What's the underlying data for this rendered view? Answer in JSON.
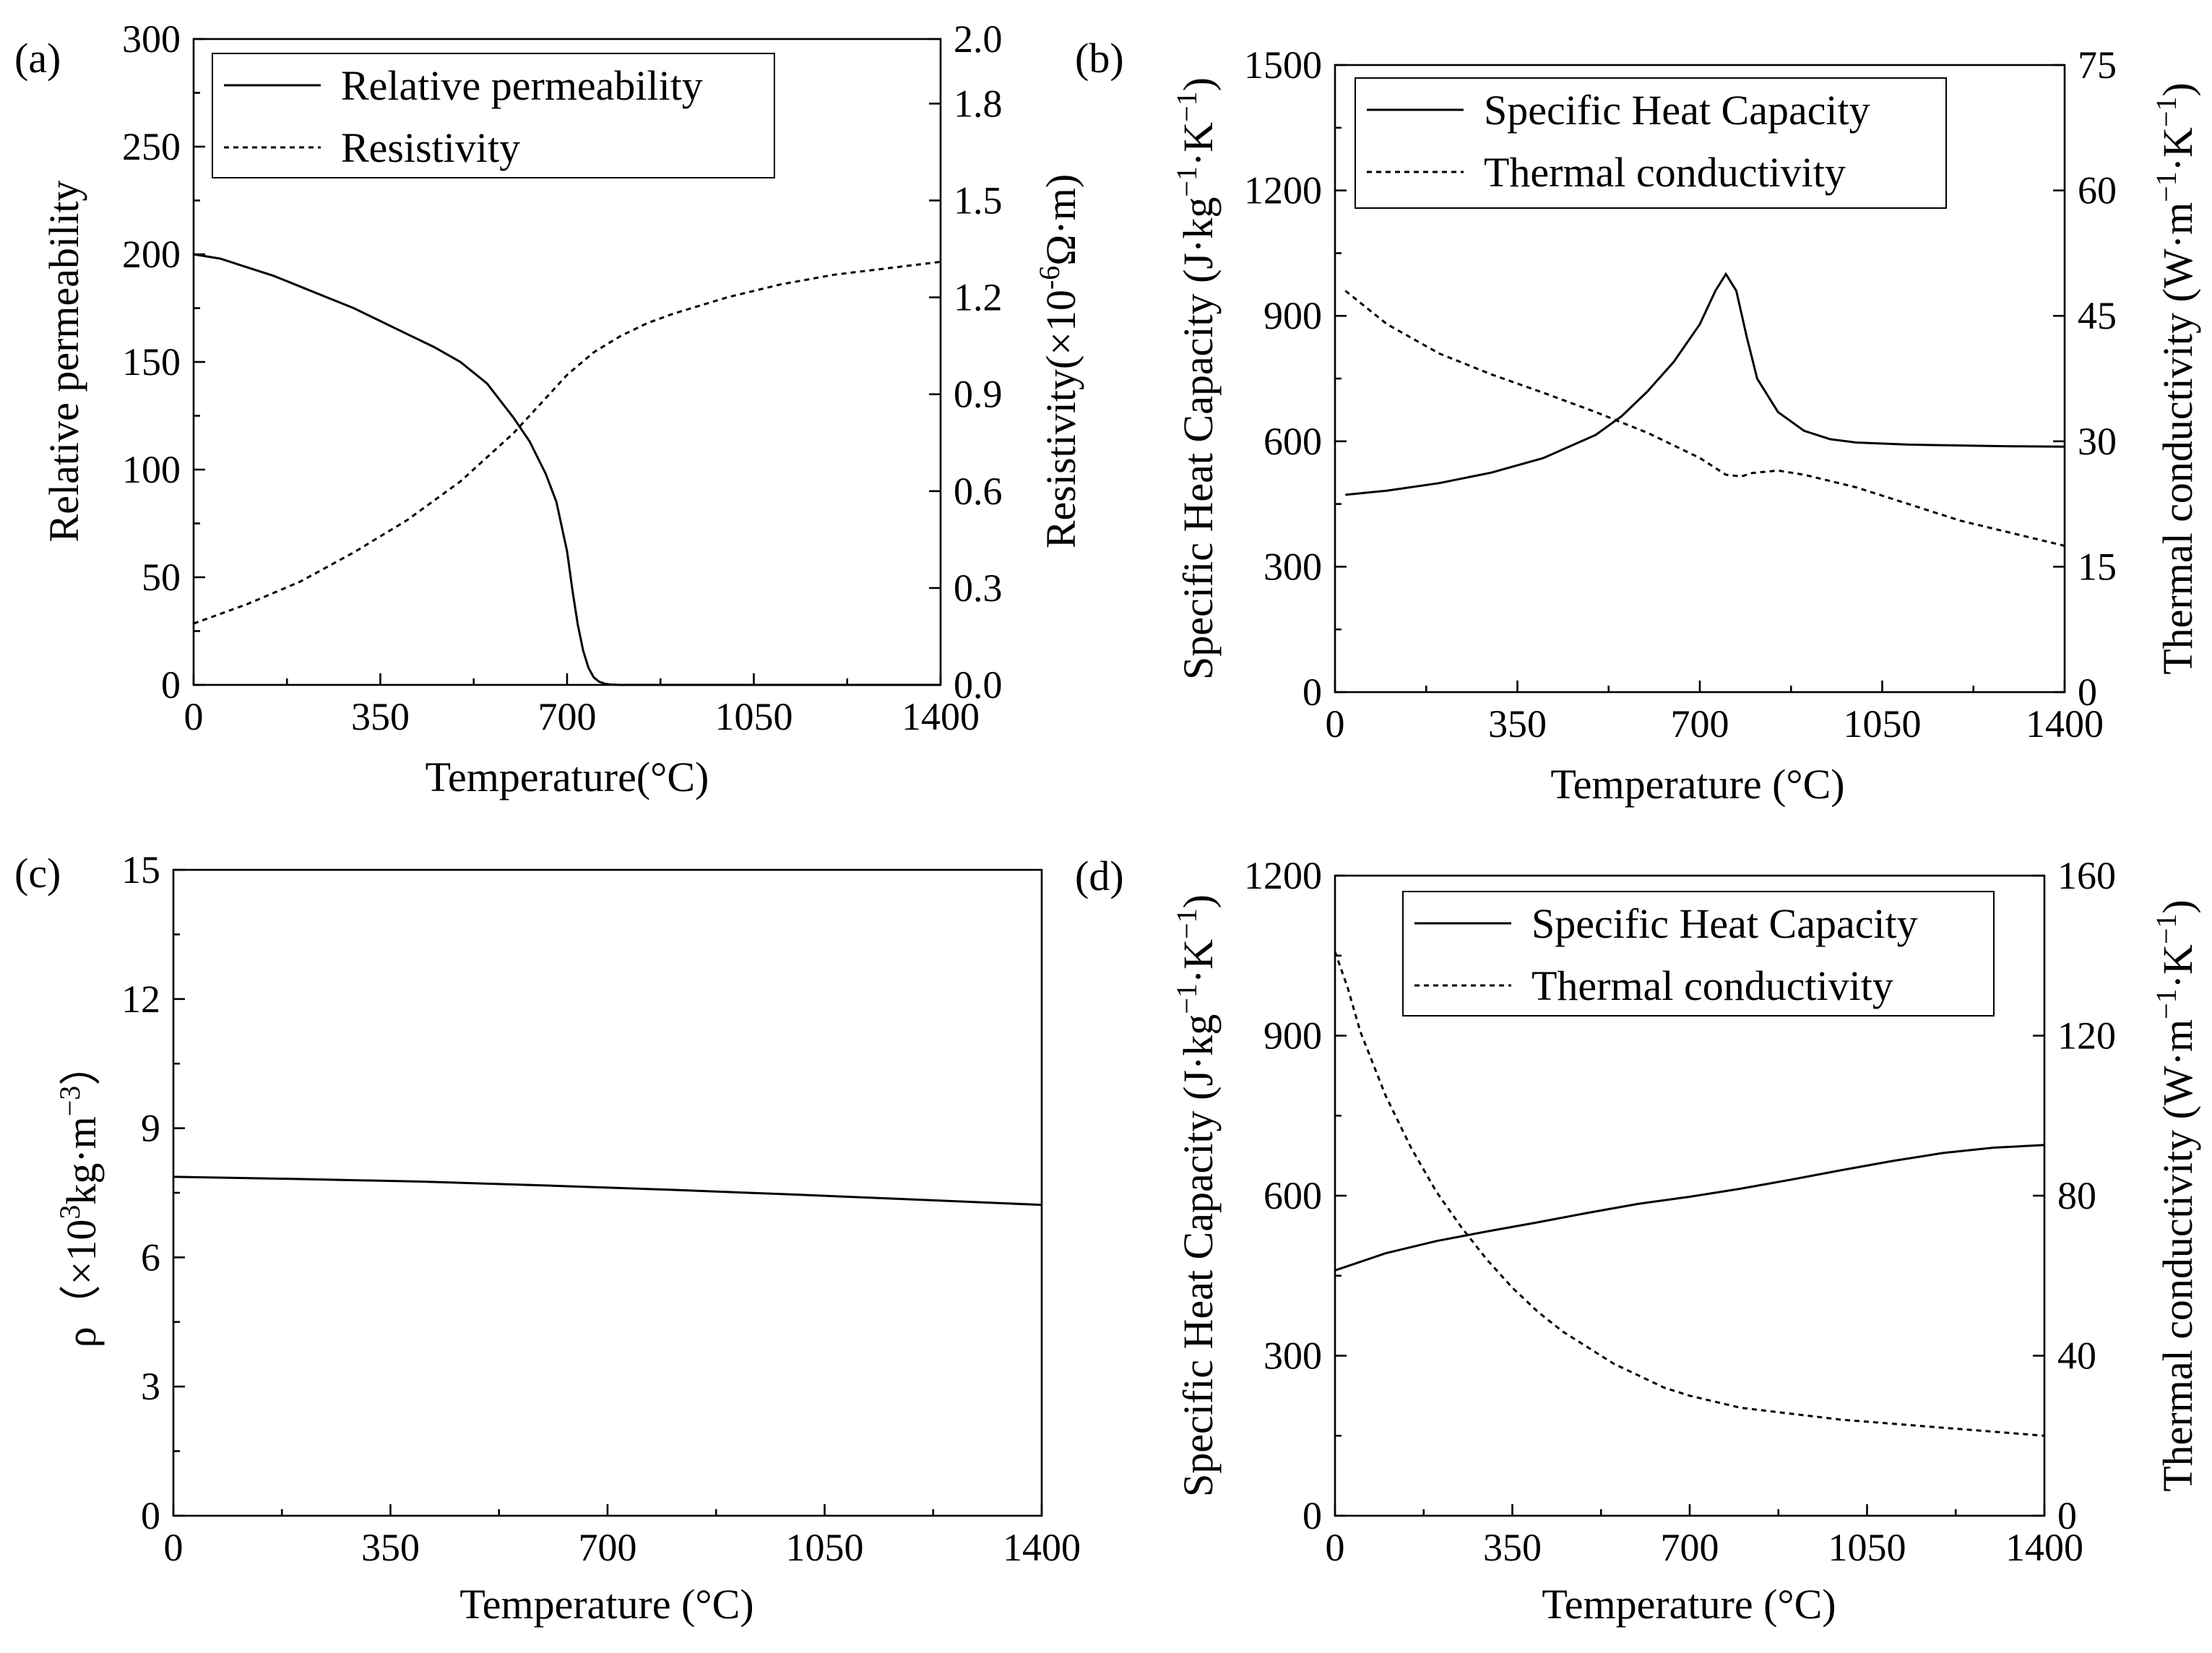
{
  "figure_caption": "Material properties versus temperature",
  "chart_data": [
    {
      "id": "a",
      "type": "line",
      "panel_label": "(a)",
      "xlabel": "Temperature(°C)",
      "xlim": [
        0,
        1400
      ],
      "xticks": [
        0,
        350,
        700,
        1050,
        1400
      ],
      "xtick_labels": [
        "0",
        "350",
        "700",
        "1050",
        "1400"
      ],
      "ylabel_left": "Relative permeability",
      "ylim_left": [
        0,
        300
      ],
      "yticks_left": [
        0,
        50,
        100,
        150,
        200,
        250,
        300
      ],
      "ytick_labels_left": [
        "0",
        "50",
        "100",
        "150",
        "200",
        "250",
        "300"
      ],
      "ylabel_right_parts": [
        "Resistivity(×10",
        "-6",
        "Ω·m)"
      ],
      "ylim_right": [
        0,
        2.0
      ],
      "yticks_right": [
        0,
        0.3,
        0.6,
        0.9,
        1.2,
        1.5,
        1.8,
        2.0
      ],
      "ytick_labels_right": [
        "0.0",
        "0.3",
        "0.6",
        "0.9",
        "1.2",
        "1.5",
        "1.8",
        "2.0"
      ],
      "legend": [
        "Relative permeability",
        "Resistivity"
      ],
      "series": [
        {
          "name": "Relative permeability",
          "axis": "left",
          "style": "solid",
          "x": [
            0,
            50,
            100,
            150,
            200,
            250,
            300,
            350,
            400,
            450,
            500,
            550,
            600,
            630,
            660,
            680,
            700,
            710,
            720,
            730,
            740,
            750,
            760,
            770,
            780,
            800,
            900,
            1000,
            1100,
            1200,
            1300,
            1400
          ],
          "y": [
            200,
            198,
            194,
            190,
            185,
            180,
            175,
            169,
            163,
            157,
            150,
            140,
            124,
            113,
            98,
            85,
            62,
            44,
            28,
            16,
            8,
            3.5,
            1.5,
            0.6,
            0.2,
            0,
            0,
            0,
            0,
            0,
            0,
            0
          ]
        },
        {
          "name": "Resistivity",
          "axis": "right",
          "style": "dashed",
          "x": [
            0,
            100,
            200,
            300,
            400,
            500,
            600,
            650,
            700,
            750,
            800,
            850,
            900,
            1000,
            1100,
            1200,
            1300,
            1400
          ],
          "y": [
            0.19,
            0.25,
            0.32,
            0.41,
            0.51,
            0.63,
            0.78,
            0.87,
            0.96,
            1.03,
            1.08,
            1.12,
            1.15,
            1.2,
            1.24,
            1.27,
            1.29,
            1.31
          ]
        }
      ]
    },
    {
      "id": "b",
      "type": "line",
      "panel_label": "(b)",
      "xlabel": "Temperature (°C)",
      "xlim": [
        0,
        1400
      ],
      "xticks": [
        0,
        350,
        700,
        1050,
        1400
      ],
      "xtick_labels": [
        "0",
        "350",
        "700",
        "1050",
        "1400"
      ],
      "ylabel_left_parts": [
        "Specific Heat Capacity (J·kg",
        "−1",
        "·K",
        "−1",
        ")"
      ],
      "ylim_left": [
        0,
        1500
      ],
      "yticks_left": [
        0,
        300,
        600,
        900,
        1200,
        1500
      ],
      "ytick_labels_left": [
        "0",
        "300",
        "600",
        "900",
        "1200",
        "1500"
      ],
      "ylabel_right_parts": [
        "Thermal conductivity (W·m",
        "−1",
        "·K",
        "−1",
        ")"
      ],
      "ylim_right": [
        0,
        75
      ],
      "yticks_right": [
        0,
        15,
        30,
        45,
        60,
        75
      ],
      "ytick_labels_right": [
        "0",
        "15",
        "30",
        "45",
        "60",
        "75"
      ],
      "legend": [
        "Specific Heat Capacity",
        "Thermal conductivity"
      ],
      "series": [
        {
          "name": "Specific Heat Capacity",
          "axis": "left",
          "style": "solid",
          "x": [
            20,
            100,
            200,
            300,
            400,
            500,
            550,
            600,
            650,
            700,
            730,
            750,
            770,
            790,
            810,
            850,
            900,
            950,
            1000,
            1100,
            1200,
            1300,
            1400
          ],
          "y": [
            472,
            482,
            500,
            525,
            560,
            615,
            660,
            720,
            790,
            880,
            960,
            1000,
            960,
            850,
            750,
            670,
            625,
            605,
            597,
            592,
            590,
            588,
            587
          ]
        },
        {
          "name": "Thermal conductivity",
          "axis": "right",
          "style": "dashed",
          "x": [
            20,
            100,
            200,
            300,
            400,
            500,
            600,
            700,
            750,
            780,
            800,
            850,
            900,
            1000,
            1100,
            1200,
            1300,
            1400
          ],
          "y": [
            48,
            44,
            40.5,
            38,
            35.8,
            33.5,
            31,
            28,
            26,
            25.8,
            26.2,
            26.5,
            26,
            24.5,
            22.5,
            20.5,
            19,
            17.5
          ]
        }
      ]
    },
    {
      "id": "c",
      "type": "line",
      "panel_label": "(c)",
      "xlabel": "Temperature (°C)",
      "xlim": [
        0,
        1400
      ],
      "xticks": [
        0,
        350,
        700,
        1050,
        1400
      ],
      "xtick_labels": [
        "0",
        "350",
        "700",
        "1050",
        "1400"
      ],
      "ylabel_left_parts": [
        "ρ（×10",
        "3",
        "kg·m",
        "−3",
        "）"
      ],
      "ylim_left": [
        0,
        15
      ],
      "yticks_left": [
        0,
        3,
        6,
        9,
        12,
        15
      ],
      "ytick_labels_left": [
        "0",
        "3",
        "6",
        "9",
        "12",
        "15"
      ],
      "series": [
        {
          "name": "ρ",
          "axis": "left",
          "style": "solid",
          "x": [
            0,
            200,
            400,
            600,
            800,
            1000,
            1200,
            1400
          ],
          "y": [
            7.87,
            7.82,
            7.76,
            7.67,
            7.57,
            7.46,
            7.34,
            7.22
          ]
        }
      ]
    },
    {
      "id": "d",
      "type": "line",
      "panel_label": "(d)",
      "xlabel": "Temperature (°C)",
      "xlim": [
        0,
        1400
      ],
      "xticks": [
        0,
        350,
        700,
        1050,
        1400
      ],
      "xtick_labels": [
        "0",
        "350",
        "700",
        "1050",
        "1400"
      ],
      "ylabel_left_parts": [
        "Specific Heat Capacity (J·kg",
        "−1",
        "·K",
        "−1",
        ")"
      ],
      "ylim_left": [
        0,
        1200
      ],
      "yticks_left": [
        0,
        300,
        600,
        900,
        1200
      ],
      "ytick_labels_left": [
        "0",
        "300",
        "600",
        "900",
        "1200"
      ],
      "ylabel_right_parts": [
        "Thermal conductivity (W·m",
        "−1",
        "·K",
        "−1",
        ")"
      ],
      "ylim_right": [
        0,
        160
      ],
      "yticks_right": [
        0,
        40,
        80,
        120,
        160
      ],
      "ytick_labels_right": [
        "0",
        "40",
        "80",
        "120",
        "160"
      ],
      "legend": [
        "Specific Heat Capacity",
        "Thermal conductivity"
      ],
      "series": [
        {
          "name": "Specific Heat Capacity",
          "axis": "left",
          "style": "solid",
          "x": [
            0,
            100,
            200,
            300,
            400,
            500,
            600,
            700,
            800,
            900,
            1000,
            1100,
            1200,
            1300,
            1400
          ],
          "y": [
            460,
            492,
            515,
            533,
            550,
            568,
            585,
            598,
            613,
            630,
            648,
            665,
            680,
            690,
            695
          ]
        },
        {
          "name": "Thermal conductivity",
          "axis": "right",
          "style": "dashed",
          "x": [
            0,
            25,
            50,
            100,
            150,
            200,
            250,
            300,
            350,
            400,
            450,
            500,
            550,
            600,
            650,
            700,
            800,
            900,
            1000,
            1100,
            1200,
            1300,
            1400
          ],
          "y": [
            141,
            132,
            121,
            105,
            92,
            81,
            72,
            64,
            57,
            51,
            46,
            42,
            38,
            35,
            32,
            30,
            27,
            25.5,
            24,
            23,
            22,
            21,
            20
          ]
        }
      ]
    }
  ]
}
